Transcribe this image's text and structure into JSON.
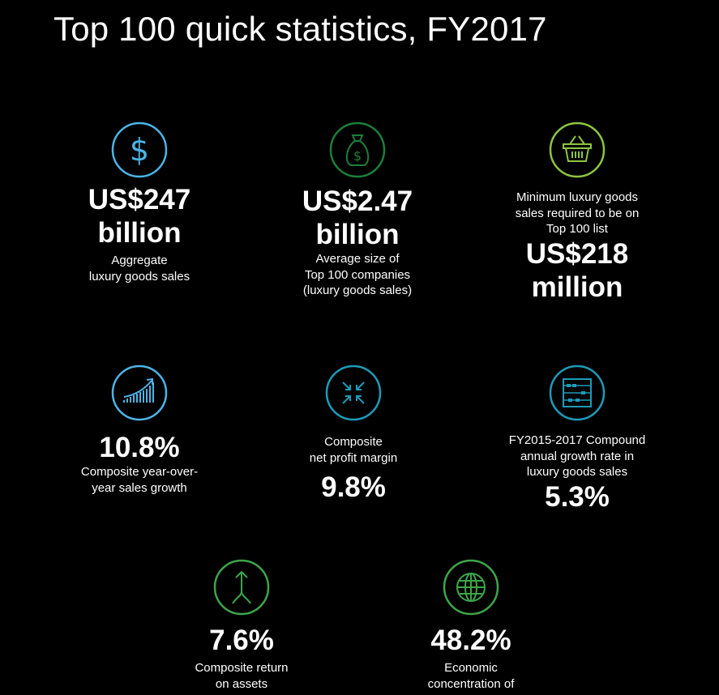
{
  "title": "Top 100 quick statistics, FY2017",
  "colors": {
    "background": "#000000",
    "blue": "#4cb4e7",
    "dark_green": "#1c7f3b",
    "light_green": "#8dc63f",
    "teal": "#1e9bb8",
    "green": "#3da64a"
  },
  "stats": [
    {
      "icon": "dollar-icon",
      "value_line1": "US$247",
      "value_line2": "billion",
      "desc_line1": "Aggregate",
      "desc_line2": "luxury goods sales"
    },
    {
      "icon": "money-bag-icon",
      "value_line1": "US$2.47",
      "value_line2": "billion",
      "desc_line1": "Average size of",
      "desc_line2": "Top 100 companies",
      "desc_line3": "(luxury goods sales)"
    },
    {
      "icon": "basket-icon",
      "desc_line1": "Minimum luxury goods",
      "desc_line2": "sales required to be on",
      "desc_line3": "Top 100 list",
      "value_line1": "US$218",
      "value_line2": "million"
    },
    {
      "icon": "growth-chart-icon",
      "value": "10.8%",
      "desc_line1": "Composite year-over-",
      "desc_line2": "year sales growth"
    },
    {
      "icon": "compress-arrows-icon",
      "desc_line1": "Composite",
      "desc_line2": "net profit margin",
      "value": "9.8%"
    },
    {
      "icon": "abacus-icon",
      "desc_line1": "FY2015-2017 Compound",
      "desc_line2": "annual growth rate in",
      "desc_line3": "luxury goods sales",
      "value": "5.3%"
    },
    {
      "icon": "merge-arrow-icon",
      "value": "7.6%",
      "desc_line1": "Composite return",
      "desc_line2": "on assets"
    },
    {
      "icon": "globe-icon",
      "value": "48.2%",
      "desc_line1": "Economic",
      "desc_line2": "concentration of"
    }
  ]
}
